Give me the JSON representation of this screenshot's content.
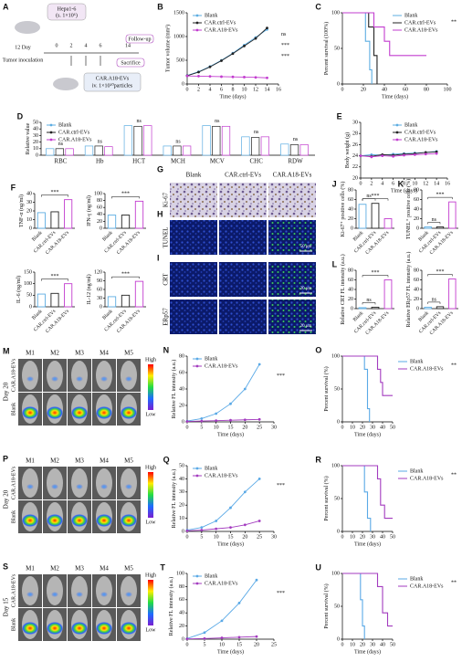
{
  "figure": {
    "panels": [
      "A",
      "G",
      "H",
      "I",
      "M",
      "P",
      "S"
    ],
    "schematic": {
      "cells": "Hepa1-6",
      "dose": "(s. 1×10⁶)",
      "day": "12 Day",
      "inoculation": "Tumor inoculation",
      "timeline": [
        0,
        2,
        4,
        6,
        14
      ],
      "follow": "Follow-up",
      "sacrifice": "Sacrifice",
      "treatment": "CAR.A18-EVs",
      "treatment_dose": "iv. 1×10¹⁰particles"
    },
    "micrographs": {
      "columns": [
        "Blank",
        "CAR.ctrl-EVs",
        "CAR.A18-EVs"
      ],
      "rows": [
        "Ki-67",
        "TUNEL",
        "CRT",
        "ERp57"
      ],
      "scale_bars": [
        "50 μm",
        "20 μm",
        "20 μm"
      ]
    },
    "imaging": [
      {
        "day": "Day 20",
        "mice": [
          "M1",
          "M2",
          "M3",
          "M4",
          "M5"
        ],
        "groups": [
          "CAR.A18-EVs",
          "Blank"
        ],
        "colorbar": [
          "High",
          "Low"
        ]
      },
      {
        "day": "Day 20",
        "mice": [
          "M1",
          "M2",
          "M3",
          "M4",
          "M5"
        ],
        "groups": [
          "CAR.A18-EVs",
          "Blank"
        ],
        "colorbar": [
          "High",
          "Low"
        ]
      },
      {
        "day": "Day 15",
        "mice": [
          "M1",
          "M2",
          "M3",
          "M4",
          "M5"
        ],
        "groups": [
          "CAR.A18-EVs",
          "Blank"
        ],
        "colorbar": [
          "High",
          "Low"
        ]
      }
    ]
  },
  "chart_data": [
    {
      "type": "line",
      "panel": "B",
      "y_label": "Tumor volume (mm³)",
      "x_label": "Time (days)",
      "x": [
        0,
        2,
        4,
        6,
        8,
        10,
        12,
        14
      ],
      "series": [
        {
          "name": "Blank",
          "color": "#5dade2",
          "values": [
            180,
            260,
            370,
            500,
            650,
            820,
            980,
            1150
          ]
        },
        {
          "name": "CAR.ctrl-EVs",
          "color": "#222222",
          "values": [
            175,
            250,
            360,
            490,
            640,
            800,
            960,
            1180
          ]
        },
        {
          "name": "CAR.A18-EVs",
          "color": "#c23ccf",
          "values": [
            170,
            165,
            160,
            155,
            150,
            145,
            140,
            130
          ]
        }
      ],
      "xlim": [
        0,
        16
      ],
      "xticks": [
        0,
        2,
        4,
        6,
        8,
        10,
        12,
        14,
        16
      ],
      "ylim": [
        0,
        1500
      ],
      "yticks": [
        0,
        500,
        1000,
        1500
      ],
      "annotations": [
        "ns",
        "***",
        "***"
      ],
      "legend": "upper left"
    },
    {
      "type": "survival",
      "panel": "C",
      "y_label": "Percent survival (100%)",
      "x_label": "Time (days)",
      "series": [
        {
          "name": "Blank",
          "color": "#5dade2",
          "x": [
            0,
            22,
            26,
            28
          ],
          "values": [
            100,
            60,
            20,
            0
          ]
        },
        {
          "name": "CAR.ctrl-EVs",
          "color": "#222222",
          "x": [
            0,
            25,
            30,
            33
          ],
          "values": [
            100,
            80,
            40,
            0
          ]
        },
        {
          "name": "CAR.A18-EVs",
          "color": "#c23ccf",
          "x": [
            0,
            30,
            40,
            45,
            80
          ],
          "values": [
            100,
            80,
            60,
            40,
            40
          ]
        }
      ],
      "xlim": [
        0,
        100
      ],
      "xticks": [
        0,
        20,
        40,
        60,
        80,
        100
      ],
      "ylim": [
        0,
        100
      ],
      "yticks": [
        0,
        50,
        100
      ],
      "annotations": [
        "**"
      ],
      "legend": "upper right"
    },
    {
      "type": "bar",
      "panel": "D",
      "y_label": "Relative value",
      "categories": [
        "RBC",
        "Hb",
        "HCT",
        "MCH",
        "MCV",
        "CHC",
        "RDW"
      ],
      "series": [
        {
          "name": "Blank",
          "color": "#5dade2",
          "values": [
            10,
            14,
            45,
            14,
            45,
            28,
            17
          ]
        },
        {
          "name": "CAR.ctrl-EVs",
          "color": "#222222",
          "values": [
            10,
            14,
            44,
            14,
            44,
            27,
            16
          ]
        },
        {
          "name": "CAR.A18-EVs",
          "color": "#c23ccf",
          "values": [
            10,
            13,
            45,
            14,
            44,
            28,
            16
          ]
        }
      ],
      "ylim": [
        0,
        50
      ],
      "yticks": [
        0,
        10,
        20,
        30,
        40,
        50
      ],
      "annotations": [
        "ns",
        "ns",
        "ns",
        "ns",
        "ns",
        "ns",
        "ns"
      ],
      "legend": "upper left"
    },
    {
      "type": "line",
      "panel": "E",
      "y_label": "Body weight (g)",
      "x_label": "Time (days)",
      "x": [
        0,
        2,
        4,
        6,
        8,
        10,
        12,
        14
      ],
      "series": [
        {
          "name": "Blank",
          "color": "#5dade2",
          "values": [
            24,
            24.2,
            24.1,
            24.3,
            24.4,
            24.5,
            24.6,
            24.8
          ]
        },
        {
          "name": "CAR.ctrl-EVs",
          "color": "#222222",
          "values": [
            24,
            23.9,
            24.2,
            24.1,
            24.3,
            24.4,
            24.6,
            24.7
          ]
        },
        {
          "name": "CAR.A18-EVs",
          "color": "#c23ccf",
          "values": [
            24,
            23.8,
            24,
            23.9,
            24.1,
            24.2,
            24.3,
            24.4
          ]
        }
      ],
      "xlim": [
        0,
        16
      ],
      "xticks": [
        0,
        2,
        4,
        6,
        8,
        10,
        12,
        14,
        16
      ],
      "ylim": [
        20,
        30
      ],
      "yticks": [
        20,
        22,
        24,
        26,
        28,
        30
      ],
      "legend": "upper right"
    },
    {
      "type": "bar",
      "panel": "F",
      "y_label": "TNF-α (ng/ml)",
      "categories": [
        "Blank",
        "CAR.ctrl-EVs",
        "CAR.A18-EVs"
      ],
      "values": [
        18,
        19,
        33
      ],
      "colors": [
        "#5dade2",
        "#222222",
        "#c23ccf"
      ],
      "ylim": [
        0,
        40
      ],
      "yticks": [
        0,
        10,
        20,
        30,
        40
      ],
      "annotations": [
        "***"
      ]
    },
    {
      "type": "bar",
      "y_label": "IFN-γ (ng/ml)",
      "categories": [
        "Blank",
        "CAR.ctrl-EVs",
        "CAR.A18-EVs"
      ],
      "values": [
        38,
        38,
        78
      ],
      "colors": [
        "#5dade2",
        "#222222",
        "#c23ccf"
      ],
      "ylim": [
        0,
        100
      ],
      "yticks": [
        0,
        20,
        40,
        60,
        80,
        100
      ],
      "annotations": [
        "***"
      ]
    },
    {
      "type": "bar",
      "y_label": "IL-6 (ng/ml)",
      "categories": [
        "Blank",
        "CAR.ctrl-EVs",
        "CAR.A18-EVs"
      ],
      "values": [
        55,
        58,
        100
      ],
      "colors": [
        "#5dade2",
        "#222222",
        "#c23ccf"
      ],
      "ylim": [
        0,
        150
      ],
      "yticks": [
        0,
        50,
        100,
        150
      ],
      "annotations": [
        "***"
      ]
    },
    {
      "type": "bar",
      "y_label": "IL-12 (ng/ml)",
      "categories": [
        "Blank",
        "CAR.ctrl-EVs",
        "CAR.A18-EVs"
      ],
      "values": [
        35,
        40,
        88
      ],
      "colors": [
        "#5dade2",
        "#222222",
        "#c23ccf"
      ],
      "ylim": [
        0,
        120
      ],
      "yticks": [
        0,
        30,
        60,
        90,
        120
      ],
      "annotations": [
        "***"
      ]
    },
    {
      "type": "bar",
      "panel": "J",
      "y_label": "Ki-67⁺ positive cells (%)",
      "categories": [
        "Blank",
        "CAR.ctrl-EVs",
        "CAR.A18-EVs"
      ],
      "values": [
        50,
        52,
        20
      ],
      "colors": [
        "#5dade2",
        "#222222",
        "#c23ccf"
      ],
      "ylim": [
        0,
        80
      ],
      "yticks": [
        0,
        20,
        40,
        60,
        80
      ],
      "annotations": [
        "***",
        "ns"
      ]
    },
    {
      "type": "bar",
      "panel": "K",
      "y_label": "TUNEL⁺ positive cells (%)",
      "categories": [
        "Blank",
        "CAR.ctrl-EVs",
        "CAR.A18-EVs"
      ],
      "values": [
        3,
        3,
        55
      ],
      "colors": [
        "#5dade2",
        "#222222",
        "#c23ccf"
      ],
      "ylim": [
        0,
        80
      ],
      "yticks": [
        0,
        20,
        40,
        60,
        80
      ],
      "annotations": [
        "***",
        "ns"
      ]
    },
    {
      "type": "bar",
      "panel": "L",
      "y_label": "Relative CRT FL intensity (a.u.)",
      "categories": [
        "Blank",
        "CAR.ctrl-EVs",
        "CAR.A18-EVs"
      ],
      "values": [
        2,
        3,
        60
      ],
      "colors": [
        "#5dade2",
        "#222222",
        "#c23ccf"
      ],
      "ylim": [
        0,
        80
      ],
      "yticks": [
        0,
        20,
        40,
        60,
        80
      ],
      "annotations": [
        "***",
        "ns"
      ]
    },
    {
      "type": "bar",
      "y_label": "Relative ERp57 FL intensity (a.u.)",
      "categories": [
        "Blank",
        "CAR.ctrl-EVs",
        "CAR.A18-EVs"
      ],
      "values": [
        3,
        4,
        62
      ],
      "colors": [
        "#5dade2",
        "#222222",
        "#c23ccf"
      ],
      "ylim": [
        0,
        80
      ],
      "yticks": [
        0,
        20,
        40,
        60,
        80
      ],
      "annotations": [
        "***",
        "ns"
      ]
    },
    {
      "type": "line",
      "panel": "N",
      "y_label": "Relative FL intensity (a.u.)",
      "x_label": "Time (days)",
      "x": [
        0,
        5,
        10,
        15,
        20,
        25
      ],
      "series": [
        {
          "name": "Blank",
          "color": "#5aa9e6",
          "values": [
            1,
            4,
            10,
            22,
            40,
            70
          ]
        },
        {
          "name": "CAR.A18-EVs",
          "color": "#a33bbf",
          "values": [
            0.5,
            1,
            1.5,
            2,
            2.5,
            3
          ]
        }
      ],
      "xlim": [
        0,
        30
      ],
      "xticks": [
        0,
        5,
        10,
        15,
        20,
        25,
        30
      ],
      "ylim": [
        0,
        80
      ],
      "yticks": [
        0,
        20,
        40,
        60,
        80
      ],
      "annotations": [
        "***"
      ],
      "legend": "upper left"
    },
    {
      "type": "survival",
      "panel": "O",
      "y_label": "Percent survival (%)",
      "x_label": "Time (days)",
      "series": [
        {
          "name": "Blank",
          "color": "#5aa9e6",
          "x": [
            0,
            22,
            25,
            27
          ],
          "values": [
            100,
            80,
            20,
            0
          ]
        },
        {
          "name": "CAR.A18-EVs",
          "color": "#a33bbf",
          "x": [
            0,
            35,
            38,
            40,
            50
          ],
          "values": [
            100,
            80,
            60,
            40,
            40
          ]
        }
      ],
      "xlim": [
        0,
        50
      ],
      "xticks": [
        0,
        10,
        20,
        30,
        40,
        50
      ],
      "ylim": [
        0,
        100
      ],
      "yticks": [
        0,
        50,
        100
      ],
      "annotations": [
        "**"
      ],
      "legend": "right"
    },
    {
      "type": "line",
      "panel": "Q",
      "y_label": "Relative FL intensity (a.u.)",
      "x_label": "Time (days)",
      "x": [
        0,
        5,
        10,
        15,
        20,
        25
      ],
      "series": [
        {
          "name": "Blank",
          "color": "#5aa9e6",
          "values": [
            1,
            3,
            8,
            18,
            30,
            40
          ]
        },
        {
          "name": "CAR.A18-EVs",
          "color": "#a33bbf",
          "values": [
            0.5,
            1,
            2,
            3,
            5,
            8
          ]
        }
      ],
      "xlim": [
        0,
        30
      ],
      "xticks": [
        0,
        5,
        10,
        15,
        20,
        25,
        30
      ],
      "ylim": [
        0,
        50
      ],
      "yticks": [
        0,
        10,
        20,
        30,
        40,
        50
      ],
      "annotations": [
        "***"
      ],
      "legend": "upper left"
    },
    {
      "type": "survival",
      "panel": "R",
      "y_label": "Percent survival (%)",
      "x_label": "Time (days)",
      "series": [
        {
          "name": "Blank",
          "color": "#5aa9e6",
          "x": [
            0,
            22,
            25,
            28
          ],
          "values": [
            100,
            60,
            20,
            0
          ]
        },
        {
          "name": "CAR.A18-EVs",
          "color": "#a33bbf",
          "x": [
            0,
            35,
            38,
            42,
            50
          ],
          "values": [
            100,
            80,
            40,
            20,
            20
          ]
        }
      ],
      "xlim": [
        0,
        50
      ],
      "xticks": [
        0,
        10,
        20,
        30,
        40,
        50
      ],
      "ylim": [
        0,
        100
      ],
      "yticks": [
        0,
        50,
        100
      ],
      "annotations": [
        "**"
      ],
      "legend": "right"
    },
    {
      "type": "line",
      "panel": "T",
      "y_label": "Relative FL intensity (a.u.)",
      "x_label": "Time (days)",
      "x": [
        0,
        5,
        10,
        15,
        20
      ],
      "series": [
        {
          "name": "Blank",
          "color": "#5aa9e6",
          "values": [
            1,
            10,
            28,
            55,
            90
          ]
        },
        {
          "name": "CAR.A18-EVs",
          "color": "#a33bbf",
          "values": [
            0.5,
            1,
            2,
            3,
            4
          ]
        }
      ],
      "xlim": [
        0,
        25
      ],
      "xticks": [
        0,
        5,
        10,
        15,
        20,
        25
      ],
      "ylim": [
        0,
        100
      ],
      "yticks": [
        0,
        20,
        40,
        60,
        80,
        100
      ],
      "annotations": [
        "***"
      ],
      "legend": "upper left"
    },
    {
      "type": "survival",
      "panel": "U",
      "y_label": "Percent survival (%)",
      "x_label": "Time (days)",
      "series": [
        {
          "name": "Blank",
          "color": "#5aa9e6",
          "x": [
            0,
            18,
            20,
            22
          ],
          "values": [
            100,
            60,
            20,
            0
          ]
        },
        {
          "name": "CAR.A18-EVs",
          "color": "#a33bbf",
          "x": [
            0,
            35,
            40,
            45,
            50
          ],
          "values": [
            100,
            80,
            40,
            20,
            20
          ]
        }
      ],
      "xlim": [
        0,
        50
      ],
      "xticks": [
        0,
        10,
        20,
        30,
        40,
        50
      ],
      "ylim": [
        0,
        100
      ],
      "yticks": [
        0,
        50,
        100
      ],
      "annotations": [
        "**"
      ],
      "legend": "right"
    }
  ]
}
